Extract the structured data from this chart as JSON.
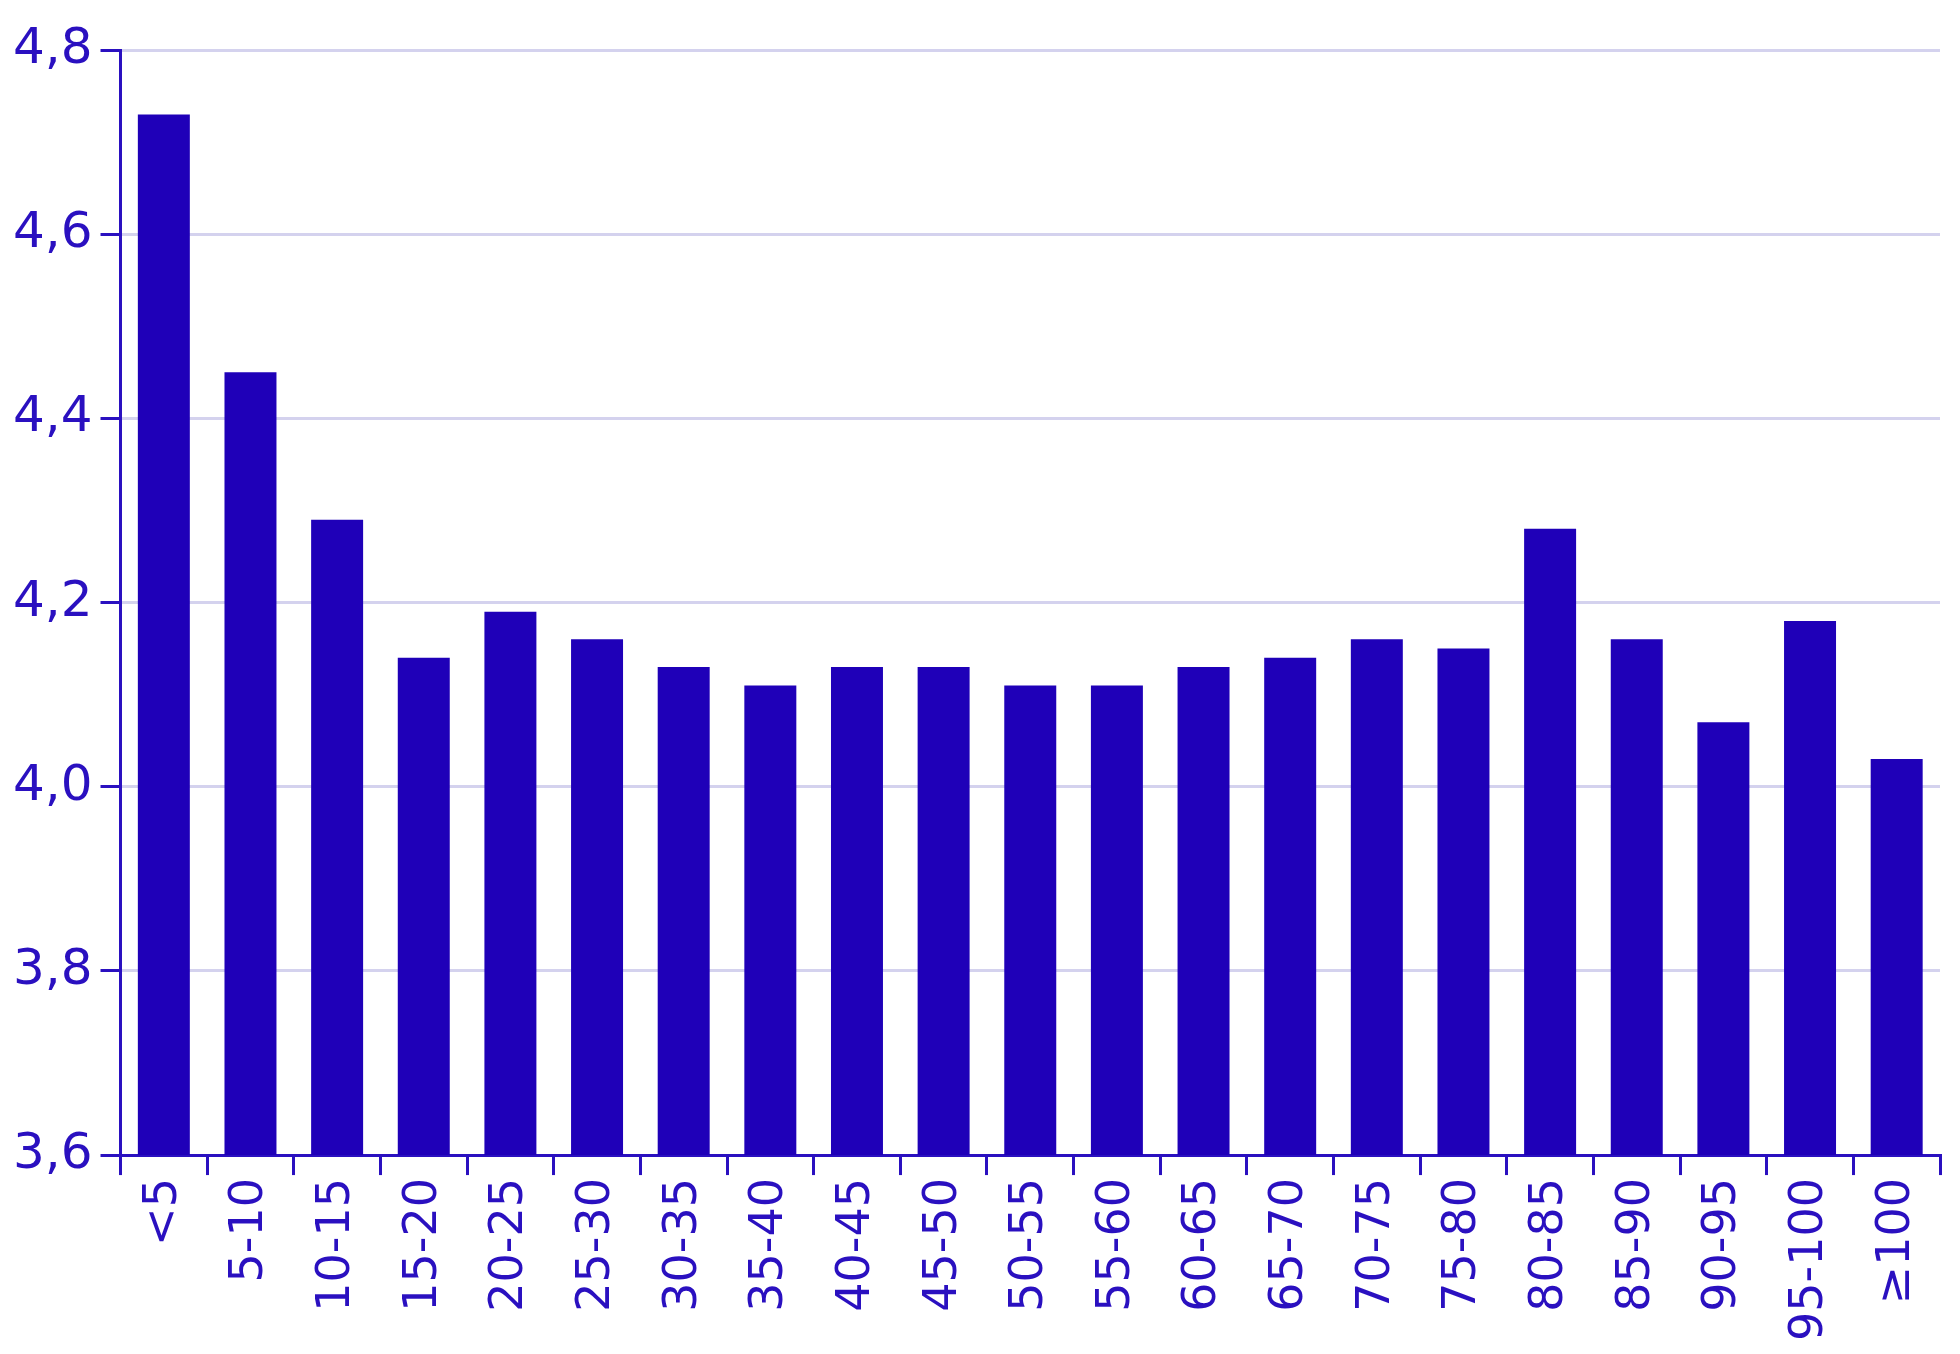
{
  "chart_data": {
    "type": "bar",
    "categories": [
      "<5",
      "5-10",
      "10-15",
      "15-20",
      "20-25",
      "25-30",
      "30-35",
      "35-40",
      "40-45",
      "45-50",
      "50-55",
      "55-60",
      "60-65",
      "65-70",
      "70-75",
      "75-80",
      "80-85",
      "85-90",
      "90-95",
      "95-100",
      "≥100"
    ],
    "values": [
      4.73,
      4.45,
      4.29,
      4.14,
      4.19,
      4.16,
      4.13,
      4.11,
      4.13,
      4.13,
      4.11,
      4.11,
      4.13,
      4.14,
      4.16,
      4.15,
      4.28,
      4.16,
      4.07,
      4.18,
      4.03
    ],
    "color": "#1f00b8",
    "ylim": [
      3.6,
      4.8
    ],
    "yticks": [
      {
        "value": 3.6,
        "label": "3,6"
      },
      {
        "value": 3.8,
        "label": "3,8"
      },
      {
        "value": 4.0,
        "label": "4,0"
      },
      {
        "value": 4.2,
        "label": "4,2"
      },
      {
        "value": 4.4,
        "label": "4,4"
      },
      {
        "value": 4.6,
        "label": "4,6"
      },
      {
        "value": 4.8,
        "label": "4,8"
      }
    ],
    "grid": "y",
    "legend": false
  }
}
